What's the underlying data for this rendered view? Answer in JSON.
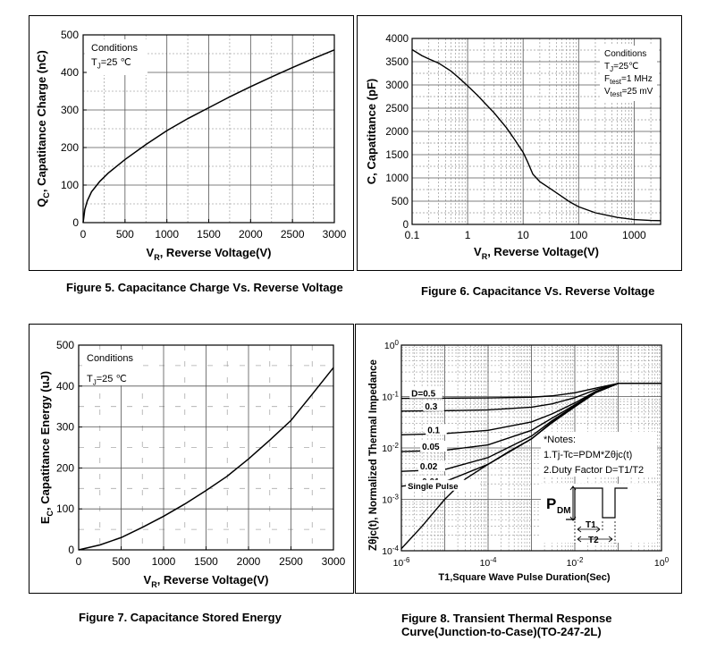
{
  "figures": [
    {
      "caption": "Figure 5. Capacitance Charge Vs. Reverse Voltage"
    },
    {
      "caption": "Figure 6. Capacitance Vs. Reverse Voltage"
    },
    {
      "caption": "Figure 7. Capacitance Stored Energy"
    },
    {
      "caption_line1": "Figure 8. Transient Thermal Response",
      "caption_line2": "Curve(Junction-to-Case)(TO-247-2L)"
    }
  ],
  "chart_data": [
    {
      "type": "line",
      "xlabel": "V_R,  Reverse Voltage(V)",
      "ylabel": "Q_C, Capatitance Charge (nC)",
      "xlim": [
        0,
        3000
      ],
      "ylim": [
        0,
        500
      ],
      "xticks": [
        0,
        500,
        1000,
        1500,
        2000,
        2500,
        3000
      ],
      "yticks": [
        0,
        100,
        200,
        300,
        400,
        500
      ],
      "grid": true,
      "annotation": [
        "Conditions",
        "T_J=25 ℃"
      ],
      "x": [
        0,
        20,
        50,
        100,
        200,
        300,
        500,
        750,
        1000,
        1250,
        1500,
        1750,
        2000,
        2250,
        2500,
        2750,
        3000
      ],
      "y": [
        0,
        35,
        58,
        82,
        110,
        132,
        168,
        208,
        245,
        277,
        306,
        335,
        362,
        388,
        413,
        437,
        460
      ]
    },
    {
      "type": "line",
      "xscale": "log",
      "xlabel": "V_R, Reverse Voltage(V)",
      "ylabel": "C, Capatitance (pF)",
      "xlim": [
        0.1,
        3000
      ],
      "ylim": [
        0,
        4000
      ],
      "xticks": [
        "0.1",
        "1",
        "10",
        "100",
        "1000"
      ],
      "yticks": [
        0,
        500,
        1000,
        1500,
        2000,
        2500,
        3000,
        3500,
        4000
      ],
      "grid": true,
      "annotation": [
        "Conditions",
        "T_J=25℃",
        "F_test=1 MHz",
        "V_test=25 mV"
      ],
      "x": [
        0.1,
        0.15,
        0.2,
        0.3,
        0.5,
        0.7,
        1,
        1.5,
        2,
        3,
        5,
        7,
        10,
        12,
        15,
        20,
        30,
        50,
        70,
        100,
        200,
        500,
        1000,
        2000,
        3000
      ],
      "y": [
        3760,
        3630,
        3560,
        3470,
        3300,
        3150,
        2980,
        2780,
        2620,
        2400,
        2080,
        1830,
        1550,
        1350,
        1080,
        920,
        780,
        600,
        480,
        380,
        250,
        150,
        105,
        85,
        80
      ]
    },
    {
      "type": "line",
      "xlabel": "V_R,  Reverse Voltage(V)",
      "ylabel": "E_C, Capatitance Energy (uJ)",
      "xlim": [
        0,
        3000
      ],
      "ylim": [
        0,
        500
      ],
      "xticks": [
        0,
        500,
        1000,
        1500,
        2000,
        2500,
        3000
      ],
      "yticks": [
        0,
        100,
        200,
        300,
        400,
        500
      ],
      "grid": true,
      "annotation": [
        "Conditions",
        "T_J=25 ℃"
      ],
      "x": [
        0,
        250,
        500,
        750,
        1000,
        1250,
        1500,
        1750,
        2000,
        2250,
        2500,
        2750,
        3000
      ],
      "y": [
        0,
        12,
        30,
        55,
        82,
        112,
        145,
        180,
        222,
        268,
        316,
        380,
        445
      ]
    },
    {
      "type": "line",
      "xscale": "log",
      "yscale": "log",
      "xlabel": "T1,Square Wave Pulse Duration(Sec)",
      "ylabel": "Zθjc(t), Normalized Thermal Impedance",
      "xlim": [
        1e-06,
        1
      ],
      "ylim": [
        0.0001,
        1
      ],
      "xticks": [
        "10^-6",
        "10^-4",
        "10^-2",
        "10^0"
      ],
      "yticks": [
        "10^-4",
        "10^-3",
        "10^-2",
        "10^-1",
        "10^0"
      ],
      "grid": true,
      "notes": [
        "*Notes:",
        "1.Tj-Tc=PDM*Zθjc(t)",
        "2.Duty Factor D=T1/T2"
      ],
      "pulse_labels": [
        "P",
        "DM",
        "T1",
        "T2"
      ],
      "series": [
        {
          "name": "D=0.5",
          "x": [
            1e-06,
            1e-05,
            0.0001,
            0.001,
            0.003,
            0.01,
            0.03,
            0.1,
            1
          ],
          "y": [
            0.092,
            0.093,
            0.094,
            0.097,
            0.103,
            0.118,
            0.145,
            0.18,
            0.18
          ]
        },
        {
          "name": "0.3",
          "x": [
            1e-06,
            1e-05,
            0.0001,
            0.001,
            0.003,
            0.01,
            0.03,
            0.1,
            1
          ],
          "y": [
            0.052,
            0.053,
            0.055,
            0.062,
            0.072,
            0.095,
            0.135,
            0.18,
            0.18
          ]
        },
        {
          "name": "0.1",
          "x": [
            1e-06,
            1e-05,
            0.0001,
            0.001,
            0.003,
            0.01,
            0.03,
            0.1,
            1
          ],
          "y": [
            0.018,
            0.019,
            0.022,
            0.032,
            0.046,
            0.075,
            0.125,
            0.18,
            0.18
          ]
        },
        {
          "name": "0.05",
          "x": [
            1e-06,
            1e-05,
            0.0001,
            0.001,
            0.003,
            0.01,
            0.03,
            0.1,
            1
          ],
          "y": [
            0.0085,
            0.009,
            0.0115,
            0.022,
            0.038,
            0.069,
            0.122,
            0.18,
            0.18
          ]
        },
        {
          "name": "0.02",
          "x": [
            1e-06,
            1e-05,
            0.0001,
            0.001,
            0.003,
            0.01,
            0.03,
            0.1,
            1
          ],
          "y": [
            0.0035,
            0.0038,
            0.0065,
            0.017,
            0.034,
            0.066,
            0.12,
            0.18,
            0.18
          ]
        },
        {
          "name": "0.01",
          "x": [
            1e-06,
            1e-05,
            0.0001,
            0.001,
            0.003,
            0.01,
            0.03,
            0.1,
            1
          ],
          "y": [
            0.0018,
            0.0022,
            0.0048,
            0.015,
            0.032,
            0.064,
            0.12,
            0.18,
            0.18
          ]
        },
        {
          "name": "Single Pulse",
          "x": [
            1e-06,
            3e-06,
            1e-05,
            3e-05,
            0.0001,
            0.0003,
            0.001,
            0.003,
            0.01,
            0.03,
            0.1,
            1
          ],
          "y": [
            0.00011,
            0.0003,
            0.001,
            0.0025,
            0.0048,
            0.0085,
            0.015,
            0.031,
            0.063,
            0.118,
            0.18,
            0.18
          ]
        }
      ]
    }
  ]
}
